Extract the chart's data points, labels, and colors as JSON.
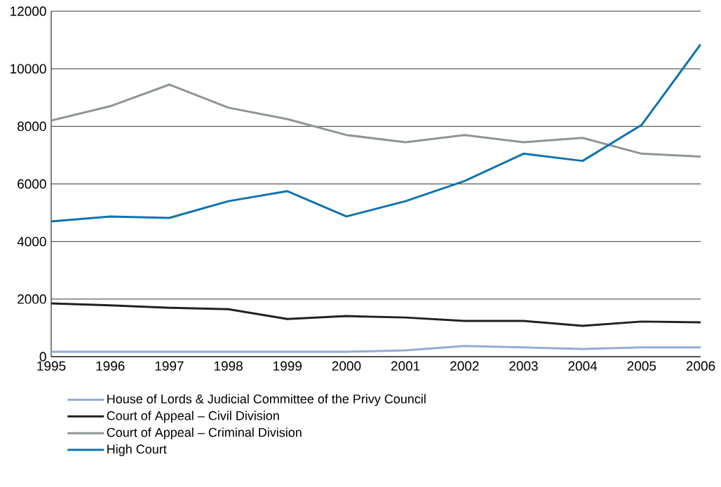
{
  "chart_data": {
    "type": "line",
    "x": [
      1995,
      1996,
      1997,
      1998,
      1999,
      2000,
      2001,
      2002,
      2003,
      2004,
      2005,
      2006
    ],
    "series": [
      {
        "name": "House of Lords & Judicial Committee of the Privy Council",
        "color": "#94acd6",
        "values": [
          170,
          170,
          170,
          170,
          170,
          170,
          220,
          370,
          320,
          270,
          320,
          320
        ]
      },
      {
        "name": "Court of Appeal – Civil Division",
        "color": "#231f20",
        "values": [
          1850,
          1780,
          1700,
          1650,
          1310,
          1410,
          1360,
          1240,
          1240,
          1070,
          1220,
          1190
        ]
      },
      {
        "name": "Court of Appeal – Criminal Division",
        "color": "#8e9595",
        "values": [
          8200,
          8700,
          9450,
          8650,
          8250,
          7700,
          7450,
          7700,
          7450,
          7600,
          7050,
          6950
        ]
      },
      {
        "name": "High Court",
        "color": "#0f73b0",
        "values": [
          4700,
          4870,
          4820,
          5400,
          5750,
          4870,
          5400,
          6100,
          7050,
          6800,
          8050,
          10850
        ]
      }
    ],
    "xlim": [
      1995,
      2006
    ],
    "ylim": [
      0,
      12000
    ],
    "xticks": [
      1995,
      1996,
      1997,
      1998,
      1999,
      2000,
      2001,
      2002,
      2003,
      2004,
      2005,
      2006
    ],
    "yticks": [
      0,
      2000,
      4000,
      6000,
      8000,
      10000,
      12000
    ],
    "grid": "y",
    "legend": "bottom"
  }
}
